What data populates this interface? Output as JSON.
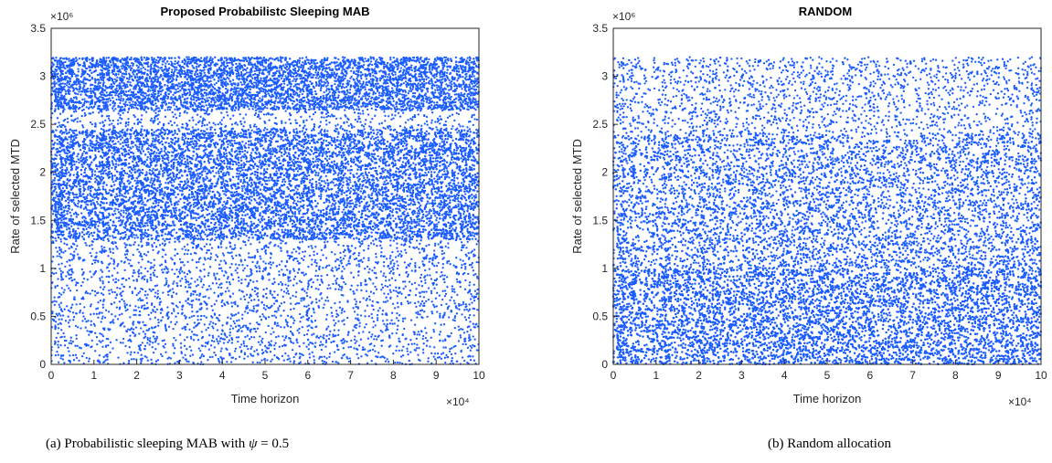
{
  "chart_data": [
    {
      "type": "scatter",
      "title": "Proposed Probabilistc Sleeping MAB",
      "xlabel": "Time horizon",
      "ylabel": "Rate of selected MTD",
      "xlim": [
        0,
        100000
      ],
      "ylim": [
        0,
        3500000
      ],
      "x_exponent_label": "×10⁴",
      "y_exponent_label": "×10⁶",
      "x_ticks": [
        0,
        1,
        2,
        3,
        4,
        5,
        6,
        7,
        8,
        9,
        10
      ],
      "y_ticks": [
        0,
        0.5,
        1,
        1.5,
        2,
        2.5,
        3,
        3.5
      ],
      "color": "#1a5cff",
      "grid": false,
      "series": [
        {
          "points_description_bands": [
            {
              "y_from": 1300000,
              "y_to": 2450000,
              "density": "very high"
            },
            {
              "y_from": 2650000,
              "y_to": 3200000,
              "density": "very high"
            },
            {
              "y_from": 2450000,
              "y_to": 2650000,
              "density": "medium"
            },
            {
              "y_from": 0,
              "y_to": 1300000,
              "density": "medium"
            }
          ]
        }
      ]
    },
    {
      "type": "scatter",
      "title": "RANDOM",
      "xlabel": "Time horizon",
      "ylabel": "Rate of selected MTD",
      "xlim": [
        0,
        100000
      ],
      "ylim": [
        0,
        3500000
      ],
      "x_exponent_label": "×10⁴",
      "y_exponent_label": "×10⁶",
      "x_ticks": [
        0,
        1,
        2,
        3,
        4,
        5,
        6,
        7,
        8,
        9,
        10
      ],
      "y_ticks": [
        0,
        0.5,
        1,
        1.5,
        2,
        2.5,
        3,
        3.5
      ],
      "color": "#1a5cff",
      "grid": false,
      "series": [
        {
          "points_description_bands": [
            {
              "y_from": 0,
              "y_to": 1000000,
              "density": "very high"
            },
            {
              "y_from": 1000000,
              "y_to": 2400000,
              "density": "high"
            },
            {
              "y_from": 2400000,
              "y_to": 3200000,
              "density": "medium"
            }
          ]
        }
      ]
    }
  ],
  "captions": {
    "a_prefix": "(a) Probabilistic sleeping MAB with ",
    "a_symbol": "ψ",
    "a_suffix": " = 0.5",
    "b": "(b) Random allocation"
  }
}
